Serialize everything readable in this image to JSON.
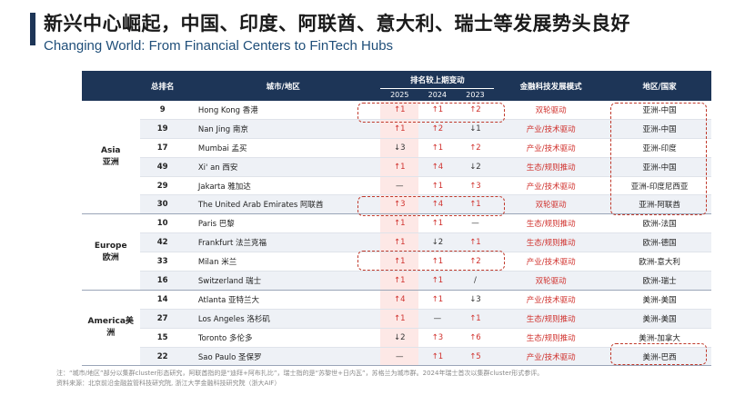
{
  "header": {
    "title_cn": "新兴中心崛起，中国、印度、阿联酋、意大利、瑞士等发展势头良好",
    "title_en": "Changing World: From Financial Centers to FinTech Hubs"
  },
  "table": {
    "head": {
      "rank": "总排名",
      "city": "城市/地区",
      "change_group": "排名较上期变动",
      "years": [
        "2025",
        "2024",
        "2023"
      ],
      "mode": "金融科技发展模式",
      "region": "地区/国家"
    },
    "groups": [
      {
        "name": "Asia\n亚洲",
        "rows": [
          {
            "rank": "9",
            "city": "Hong Kong  香港",
            "c2025": "↑1",
            "c2024": "↑1",
            "c2023": "↑2",
            "mode": "双轮驱动",
            "country": "亚洲-中国"
          },
          {
            "rank": "19",
            "city": "Nan Jing 南京",
            "c2025": "↑1",
            "c2024": "↑2",
            "c2023": "↓1",
            "mode": "产业/技术驱动",
            "country": "亚洲-中国"
          },
          {
            "rank": "17",
            "city": "Mumbai  孟买",
            "c2025": "↓3",
            "c2024": "↑1",
            "c2023": "↑2",
            "mode": "产业/技术驱动",
            "country": "亚洲-印度"
          },
          {
            "rank": "49",
            "city": "Xi' an 西安",
            "c2025": "↑1",
            "c2024": "↑4",
            "c2023": "↓2",
            "mode": "生态/规则推动",
            "country": "亚洲-中国"
          },
          {
            "rank": "29",
            "city": "Jakarta  雅加达",
            "c2025": "—",
            "c2024": "↑1",
            "c2023": "↑3",
            "mode": "产业/技术驱动",
            "country": "亚洲-印度尼西亚"
          },
          {
            "rank": "30",
            "city": "The United Arab Emirates 阿联酋",
            "c2025": "↑3",
            "c2024": "↑4",
            "c2023": "↑1",
            "mode": "双轮驱动",
            "country": "亚洲-阿联酋"
          }
        ]
      },
      {
        "name": "Europe\n欧洲",
        "rows": [
          {
            "rank": "10",
            "city": "Paris 巴黎",
            "c2025": "↑1",
            "c2024": "↑1",
            "c2023": "—",
            "mode": "生态/规则推动",
            "country": "欧洲-法国"
          },
          {
            "rank": "42",
            "city": "Frankfurt 法兰克福",
            "c2025": "↑1",
            "c2024": "↓2",
            "c2023": "↑1",
            "mode": "生态/规则推动",
            "country": "欧洲-德国"
          },
          {
            "rank": "33",
            "city": "Milan 米兰",
            "c2025": "↑1",
            "c2024": "↑1",
            "c2023": "↑2",
            "mode": "产业/技术驱动",
            "country": "欧洲-意大利"
          },
          {
            "rank": "16",
            "city": "Switzerland 瑞士",
            "c2025": "↑1",
            "c2024": "↑1",
            "c2023": "/",
            "mode": "双轮驱动",
            "country": "欧洲-瑞士"
          }
        ]
      },
      {
        "name": "America美\n洲",
        "rows": [
          {
            "rank": "14",
            "city": "Atlanta 亚特兰大",
            "c2025": "↑4",
            "c2024": "↑1",
            "c2023": "↓3",
            "mode": "产业/技术驱动",
            "country": "美洲-美国"
          },
          {
            "rank": "27",
            "city": "Los Angeles 洛杉矶",
            "c2025": "↑1",
            "c2024": "—",
            "c2023": "↑1",
            "mode": "生态/规则推动",
            "country": "美洲-美国"
          },
          {
            "rank": "15",
            "city": "Toronto 多伦多",
            "c2025": "↓2",
            "c2024": "↑3",
            "c2023": "↑6",
            "mode": "生态/规则推动",
            "country": "美洲-加拿大"
          },
          {
            "rank": "22",
            "city": "Sao Paulo 圣保罗",
            "c2025": "—",
            "c2024": "↑1",
            "c2023": "↑5",
            "mode": "产业/技术驱动",
            "country": "美洲-巴西"
          }
        ]
      }
    ]
  },
  "notes": {
    "line1": "注：“城市/地区”部分以集群cluster形态研究，阿联酋指的是“迪拜+阿布扎比”，瑞士指的是“苏黎世+日内瓦”，苏格兰为城市群。2024年瑞士首次以集群cluster形式参评。",
    "line2": "资料来源：北京前沿金融监管科技研究院, 浙江大学金融科技研究院（浙大AIF）"
  },
  "colors": {
    "navy": "#1d3557",
    "red": "#d0312d",
    "title_en": "#1f4e79"
  }
}
